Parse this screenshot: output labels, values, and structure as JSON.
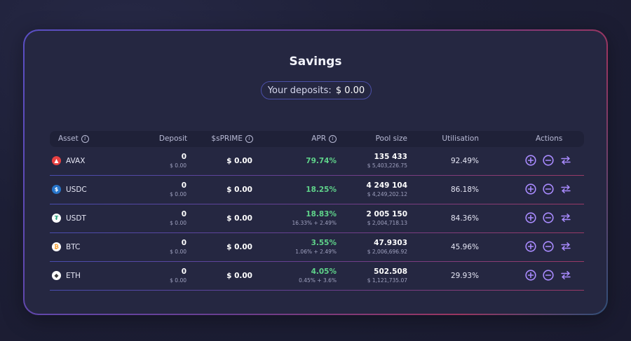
{
  "title": "Savings",
  "deposits": {
    "label": "Your deposits:",
    "amount": "$ 0.00"
  },
  "headers": {
    "asset": "Asset",
    "deposit": "Deposit",
    "sprime": "$sPRIME",
    "apr": "APR",
    "pool_size": "Pool size",
    "utilisation": "Utilisation",
    "actions": "Actions"
  },
  "colors": {
    "accent": "#a98bff",
    "apr_green": "#5fd38a",
    "avax": "#e84142",
    "usdc": "#2775ca"
  },
  "rows": [
    {
      "asset": "AVAX",
      "icon": "avax-icon",
      "deposit": "0",
      "deposit_usd": "$ 0.00",
      "sprime": "$ 0.00",
      "apr": "79.74%",
      "apr_detail": "",
      "pool": "135 433",
      "pool_usd": "$ 5,403,226.75",
      "util": "92.49%"
    },
    {
      "asset": "USDC",
      "icon": "usdc-icon",
      "deposit": "0",
      "deposit_usd": "$ 0.00",
      "sprime": "$ 0.00",
      "apr": "18.25%",
      "apr_detail": "",
      "pool": "4 249 104",
      "pool_usd": "$ 4,249,202.12",
      "util": "86.18%"
    },
    {
      "asset": "USDT",
      "icon": "usdt-icon",
      "deposit": "0",
      "deposit_usd": "$ 0.00",
      "sprime": "$ 0.00",
      "apr": "18.83%",
      "apr_detail": "16.33% + 2.49%",
      "pool": "2 005 150",
      "pool_usd": "$ 2,004,718.13",
      "util": "84.36%"
    },
    {
      "asset": "BTC",
      "icon": "btc-icon",
      "deposit": "0",
      "deposit_usd": "$ 0.00",
      "sprime": "$ 0.00",
      "apr": "3.55%",
      "apr_detail": "1.06% + 2.49%",
      "pool": "47.9303",
      "pool_usd": "$ 2,006,696.92",
      "util": "45.96%"
    },
    {
      "asset": "ETH",
      "icon": "eth-icon",
      "deposit": "0",
      "deposit_usd": "$ 0.00",
      "sprime": "$ 0.00",
      "apr": "4.05%",
      "apr_detail": "0.45% + 3.6%",
      "pool": "502.508",
      "pool_usd": "$ 1,121,735.07",
      "util": "29.93%"
    }
  ]
}
